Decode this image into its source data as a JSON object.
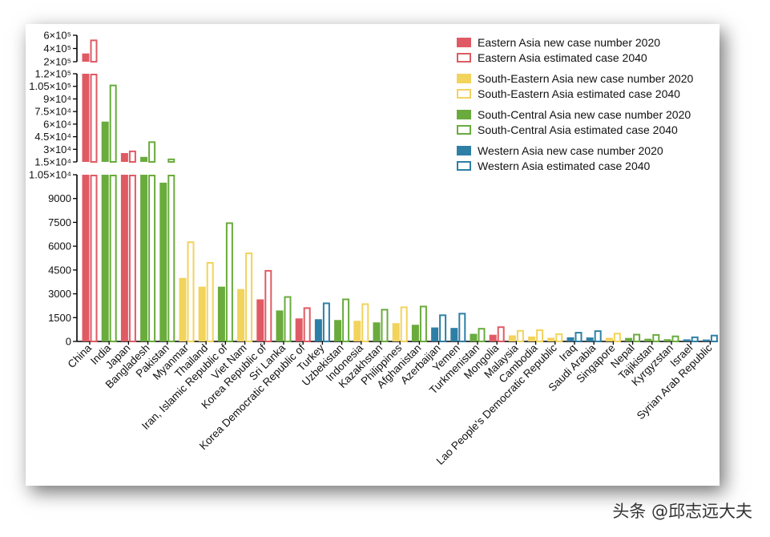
{
  "watermark": "头条 @邱志远大夫",
  "colors": {
    "eastern": "#e05a64",
    "south_eastern": "#f2d35c",
    "south_central": "#6aab3d",
    "western": "#2e7fa5",
    "axis": "#000000"
  },
  "chart_data": {
    "type": "bar",
    "title": "",
    "xlabel": "",
    "ylabel": "",
    "axis_segments": [
      {
        "range": [
          0,
          10500
        ],
        "ticks": [
          0,
          1500,
          3000,
          4500,
          6000,
          7500,
          9000,
          10500
        ],
        "tick_labels": [
          "0",
          "1500",
          "3000",
          "4500",
          "6000",
          "7500",
          "9000",
          "1.05×10⁴"
        ]
      },
      {
        "range": [
          15000,
          120000
        ],
        "ticks": [
          15000,
          30000,
          45000,
          60000,
          75000,
          90000,
          105000,
          120000
        ],
        "tick_labels": [
          "1.5×10⁴",
          "3×10⁴",
          "4.5×10⁴",
          "6×10⁴",
          "7.5×10⁴",
          "9×10⁴",
          "1.05×10⁵",
          "1.2×10⁵"
        ]
      },
      {
        "range": [
          200000,
          600000
        ],
        "ticks": [
          200000,
          400000,
          600000
        ],
        "tick_labels": [
          "2×10⁵",
          "4×10⁵",
          "6×10⁵"
        ]
      }
    ],
    "legend": {
      "placement": "top-right",
      "entries": [
        {
          "label": "Eastern Asia new case number 2020",
          "region": "eastern",
          "style": "filled"
        },
        {
          "label": "Eastern Asia estimated case 2040",
          "region": "eastern",
          "style": "outline"
        },
        {
          "label": "South-Eastern Asia new case number 2020",
          "region": "south_eastern",
          "style": "filled"
        },
        {
          "label": "South-Eastern Asia estimated case 2040",
          "region": "south_eastern",
          "style": "outline"
        },
        {
          "label": "South-Central Asia new case number 2020",
          "region": "south_central",
          "style": "filled"
        },
        {
          "label": "South-Central Asia estimated case 2040",
          "region": "south_central",
          "style": "outline"
        },
        {
          "label": "Western Asia new case number 2020",
          "region": "western",
          "style": "filled"
        },
        {
          "label": "Western Asia estimated case 2040",
          "region": "western",
          "style": "outline"
        }
      ]
    },
    "categories": [
      "China",
      "India",
      "Japan",
      "Bangladesh",
      "Pakistan",
      "Myanmar",
      "Thailand",
      "Iran, Islamic Republic of",
      "Viet Nam",
      "Korea Republic of",
      "Sri Lanka",
      "Korea Democratic Republic of",
      "Turkey",
      "Uzbekistan",
      "Indonesia",
      "Kazakhstan",
      "Philippines",
      "Afghanistan",
      "Azerbaijan",
      "Yemen",
      "Turkmenistan",
      "Mongolia",
      "Malaysia",
      "Cambodia",
      "Lao People's Democratic Republic",
      "Iraq",
      "Saudi Arabia",
      "Singapore",
      "Nepal",
      "Tajikistan",
      "Kyrgyzstan",
      "Israel",
      "Syrian Arab Republic"
    ],
    "regions": [
      "eastern",
      "south_central",
      "eastern",
      "south_central",
      "south_central",
      "south_eastern",
      "south_eastern",
      "south_central",
      "south_eastern",
      "eastern",
      "south_central",
      "eastern",
      "western",
      "south_central",
      "south_eastern",
      "south_central",
      "south_eastern",
      "south_central",
      "western",
      "western",
      "south_central",
      "eastern",
      "south_eastern",
      "south_eastern",
      "south_eastern",
      "western",
      "western",
      "south_eastern",
      "south_central",
      "south_central",
      "south_central",
      "western",
      "western"
    ],
    "series": [
      {
        "name": "new case number 2020",
        "values": [
          325000,
          63000,
          25500,
          21000,
          10000,
          4000,
          3450,
          3450,
          3300,
          2650,
          1950,
          1450,
          1400,
          1350,
          1300,
          1200,
          1150,
          1050,
          880,
          850,
          480,
          420,
          380,
          310,
          230,
          260,
          250,
          230,
          220,
          170,
          140,
          130,
          120
        ]
      },
      {
        "name": "estimated case 2040",
        "values": [
          535000,
          107000,
          28500,
          39500,
          19000,
          6300,
          5000,
          7500,
          5600,
          4500,
          2850,
          2150,
          2450,
          2700,
          2400,
          2050,
          2200,
          2250,
          1700,
          1800,
          850,
          950,
          720,
          760,
          510,
          600,
          700,
          540,
          480,
          460,
          370,
          310,
          420
        ]
      }
    ]
  }
}
